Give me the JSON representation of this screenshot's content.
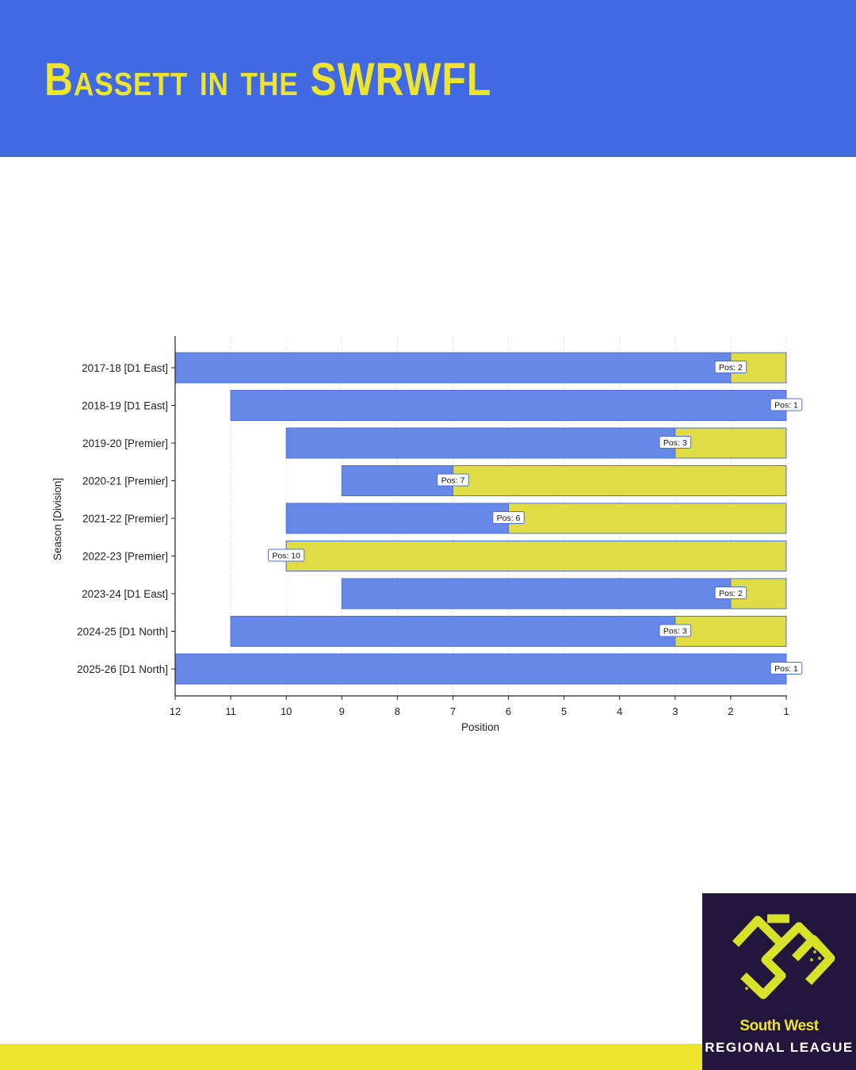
{
  "header": {
    "title": "Bassett in the SWRWFL"
  },
  "colors": {
    "header_bg": "#4169e1",
    "title": "#ece42f",
    "bar_blue": "#6688e6",
    "bar_yellow": "#e0dc45",
    "bar_edge": "#4a6fdc",
    "band": "#ece42f",
    "logo_bg": "#22163d"
  },
  "chart_data": {
    "type": "bar",
    "orientation": "horizontal",
    "title": "",
    "xlabel": "Position",
    "ylabel": "Season [Division]",
    "xlim": [
      12,
      1
    ],
    "x_ticks": [
      12,
      11,
      10,
      9,
      8,
      7,
      6,
      5,
      4,
      3,
      2,
      1
    ],
    "grid": "vertical dotted",
    "categories": [
      "2017-18 [D1 East]",
      "2018-19 [D1 East]",
      "2019-20 [Premier]",
      "2020-21 [Premier]",
      "2021-22 [Premier]",
      "2022-23 [Premier]",
      "2023-24 [D1 East]",
      "2024-25 [D1 North]",
      "2025-26 [D1 North]"
    ],
    "league_size": [
      12,
      11,
      10,
      9,
      10,
      10,
      9,
      11,
      12
    ],
    "position": [
      2,
      1,
      3,
      7,
      6,
      10,
      2,
      3,
      1
    ],
    "labels": [
      "Pos: 2",
      "Pos: 1",
      "Pos: 3",
      "Pos: 7",
      "Pos: 6",
      "Pos: 10",
      "Pos: 2",
      "Pos: 3",
      "Pos: 1"
    ]
  },
  "logo": {
    "line1": "South West",
    "line2": "REGIONAL LEAGUE"
  }
}
